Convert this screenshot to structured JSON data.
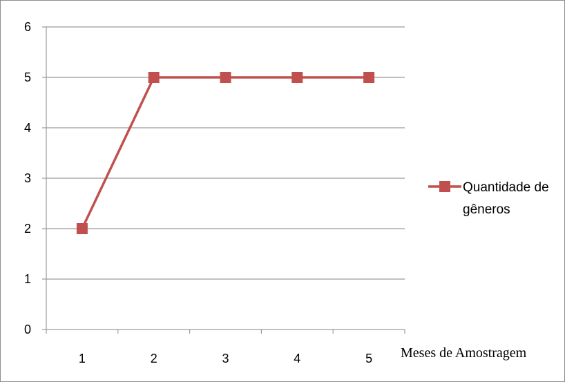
{
  "chart_data": {
    "type": "line",
    "x": [
      1,
      2,
      3,
      4,
      5
    ],
    "categories": [
      "1",
      "2",
      "3",
      "4",
      "5"
    ],
    "series": [
      {
        "name": "Quantidade de gêneros",
        "name_lines": [
          "Quantidade de",
          "gêneros"
        ],
        "values": [
          2,
          5,
          5,
          5,
          5
        ],
        "color": "#c0504d"
      }
    ],
    "xlabel": "Meses de Amostragem",
    "ylabel": "",
    "ylim": [
      0,
      6
    ],
    "yticks": [
      "0",
      "1",
      "2",
      "3",
      "4",
      "5",
      "6"
    ],
    "grid": true,
    "legend": "right",
    "marker": "square"
  }
}
